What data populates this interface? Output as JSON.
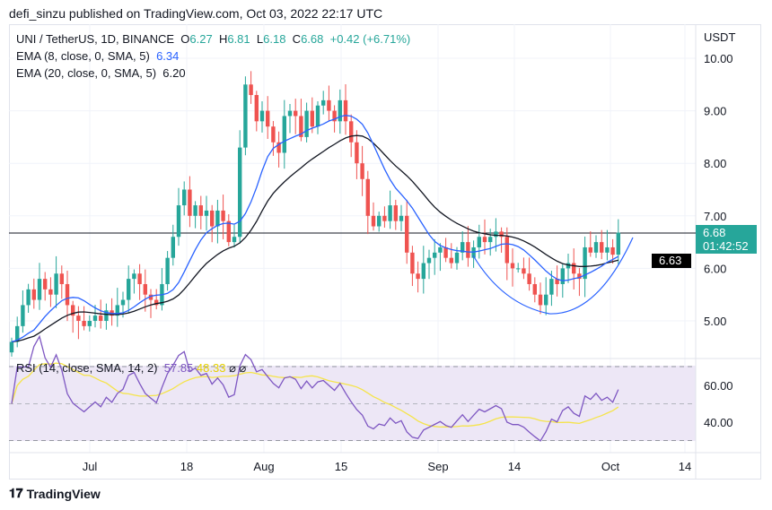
{
  "header": {
    "published": "defi_sinzu published on TradingView.com, Oct 03, 2022 22:17 UTC"
  },
  "legend": {
    "symbol": "UNI / TetherUS, 1D, BINANCE",
    "o_label": "O",
    "o": "6.27",
    "h_label": "H",
    "h": "6.81",
    "l_label": "L",
    "l": "6.18",
    "c_label": "C",
    "c": "6.68",
    "change": "+0.42 (+6.71%)",
    "ema8_label": "EMA (8, close, 0, SMA, 5)",
    "ema8": "6.34",
    "ema20_label": "EMA (20, close, 0, SMA, 5)",
    "ema20": "6.20",
    "rsi_label": "RSI (14, close, SMA, 14, 2)",
    "rsi": "57.85",
    "rsi_ma": "48.33",
    "rsi_extra": "⌀ ⌀"
  },
  "axis": {
    "currency": "USDT",
    "price_ticks": [
      "10.00",
      "9.00",
      "8.00",
      "7.00",
      "6.00",
      "5.00"
    ],
    "rsi_ticks": [
      "60.00",
      "40.00"
    ],
    "time_labels": [
      "Jul",
      "18",
      "Aug",
      "15",
      "Sep",
      "14",
      "Oct",
      "14"
    ],
    "last_price": "6.68",
    "countdown": "01:42:52",
    "ema_tag": "6.63"
  },
  "footer": {
    "brand": "TradingView"
  },
  "colors": {
    "up": "#26a69a",
    "down": "#ef5350",
    "ema8": "#2962ff",
    "ema20": "#131722",
    "rsi": "#7e57c2",
    "rsi_ma": "#f5e44a",
    "rsi_band": "#ede7f6"
  },
  "chart_data": {
    "type": "candlestick",
    "title": "UNI / TetherUS, 1D, BINANCE",
    "start_date": "2022-06-16",
    "ylim": [
      4.4,
      10.6
    ],
    "rsi_ylim": [
      20,
      80
    ],
    "closes": [
      4.6,
      4.9,
      5.3,
      5.6,
      5.4,
      5.8,
      5.6,
      5.5,
      5.9,
      5.7,
      5.3,
      5.1,
      5.0,
      4.9,
      5.0,
      5.1,
      5.0,
      5.2,
      5.1,
      5.3,
      5.4,
      5.8,
      5.9,
      5.7,
      5.5,
      5.4,
      5.3,
      5.7,
      6.2,
      6.6,
      7.2,
      7.5,
      7.0,
      7.2,
      7.0,
      7.1,
      6.8,
      7.1,
      6.9,
      6.5,
      6.6,
      8.3,
      9.5,
      9.3,
      8.8,
      9.0,
      8.7,
      8.4,
      8.2,
      8.9,
      9.0,
      8.9,
      8.5,
      9.0,
      8.7,
      9.1,
      9.2,
      9.0,
      8.8,
      9.2,
      8.8,
      8.4,
      8.0,
      7.7,
      7.0,
      6.8,
      7.0,
      6.9,
      7.2,
      6.9,
      7.0,
      6.3,
      5.9,
      5.8,
      6.1,
      6.2,
      6.3,
      6.4,
      6.2,
      6.1,
      6.3,
      6.5,
      6.2,
      6.4,
      6.6,
      6.5,
      6.6,
      6.7,
      6.6,
      6.1,
      6.0,
      6.0,
      5.9,
      5.7,
      5.5,
      5.3,
      5.5,
      5.8,
      5.7,
      6.0,
      6.1,
      5.9,
      5.8,
      6.4,
      6.3,
      6.5,
      6.3,
      6.4,
      6.26,
      6.68
    ]
  }
}
